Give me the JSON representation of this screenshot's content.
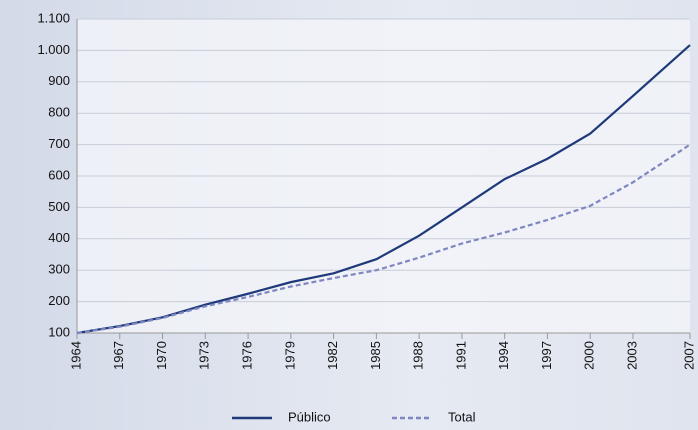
{
  "chart_data": {
    "type": "line",
    "x": [
      1964,
      1967,
      1970,
      1973,
      1976,
      1979,
      1982,
      1985,
      1988,
      1991,
      1994,
      1997,
      2000,
      2003,
      2007
    ],
    "series": [
      {
        "name": "Público",
        "color": "#1f3a7a",
        "dash": false,
        "values": [
          100,
          122,
          150,
          190,
          225,
          262,
          290,
          335,
          410,
          500,
          590,
          655,
          735,
          855,
          1017
        ]
      },
      {
        "name": "Total",
        "color": "#7f86c0",
        "dash": true,
        "values": [
          100,
          120,
          148,
          185,
          215,
          248,
          275,
          300,
          340,
          385,
          420,
          460,
          505,
          580,
          700
        ]
      }
    ],
    "xlim": [
      1964,
      2007
    ],
    "xticks": [
      1964,
      1967,
      1970,
      1973,
      1976,
      1979,
      1982,
      1985,
      1988,
      1991,
      1994,
      1997,
      2000,
      2003,
      2007
    ],
    "ylim": [
      100,
      1100
    ],
    "yticks": [
      100,
      200,
      300,
      400,
      500,
      600,
      700,
      800,
      900,
      {
        "value": 1000,
        "label": "1.000"
      },
      {
        "value": 1100,
        "label": "1.100"
      }
    ],
    "grid": true
  }
}
